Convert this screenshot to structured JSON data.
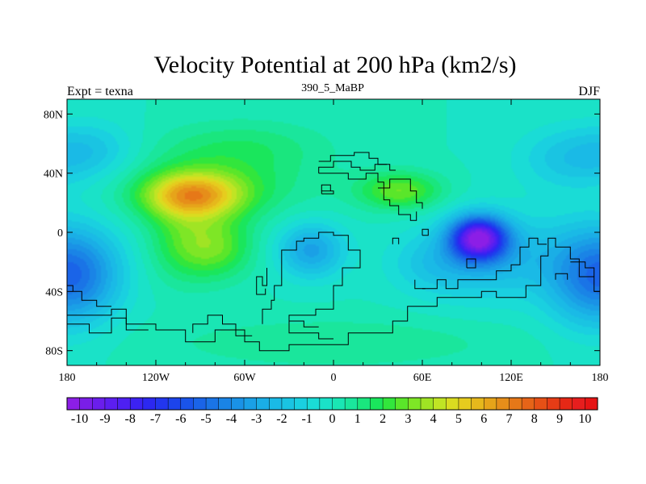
{
  "chart_data": {
    "type": "heatmap",
    "title": "Velocity Potential at 200 hPa (km2/s)",
    "subtitle": "390_5_MaBP",
    "left_label": "Expt = texna",
    "right_label": "DJF",
    "x_range": [
      -180,
      180
    ],
    "y_range": [
      -90,
      90
    ],
    "x_ticks": [
      {
        "value": -180,
        "label": "180"
      },
      {
        "value": -120,
        "label": "120W"
      },
      {
        "value": -60,
        "label": "60W"
      },
      {
        "value": 0,
        "label": "0"
      },
      {
        "value": 60,
        "label": "60E"
      },
      {
        "value": 120,
        "label": "120E"
      },
      {
        "value": 180,
        "label": "180"
      }
    ],
    "y_ticks": [
      {
        "value": 80,
        "label": "80N"
      },
      {
        "value": 40,
        "label": "40N"
      },
      {
        "value": 0,
        "label": "0"
      },
      {
        "value": -40,
        "label": "40S"
      },
      {
        "value": -80,
        "label": "80S"
      }
    ],
    "colorbar": {
      "min": -10.5,
      "max": 10.5,
      "step": 0.5,
      "labels": [
        "-10",
        "-9",
        "-8",
        "-7",
        "-6",
        "-5",
        "-4",
        "-3",
        "-2",
        "-1",
        "0",
        "1",
        "2",
        "3",
        "4",
        "5",
        "6",
        "7",
        "8",
        "9",
        "10"
      ],
      "colors": [
        "#8c1ee6",
        "#7a1ee8",
        "#6a1eec",
        "#5c1ef0",
        "#4e20f2",
        "#3c22f2",
        "#2c28f0",
        "#2236ee",
        "#1c44ec",
        "#1a54ea",
        "#1a64e8",
        "#1a74e6",
        "#1a84e6",
        "#1a92e6",
        "#1aa0e6",
        "#1aaee6",
        "#1abae6",
        "#1ac4e2",
        "#1ad0e0",
        "#1adcd6",
        "#1ae2c8",
        "#1ae6b4",
        "#1ae69c",
        "#1ae67e",
        "#1ae65c",
        "#32e63c",
        "#5ae62a",
        "#7ee626",
        "#a0e424",
        "#c0e424",
        "#dadc20",
        "#e6cc1e",
        "#e6b81c",
        "#e6a41a",
        "#e68e1a",
        "#e67818",
        "#e66418",
        "#e65016",
        "#e63c16",
        "#e62816",
        "#e61e1e",
        "#e61414"
      ]
    },
    "field_centers": [
      {
        "lon": -95,
        "lat": 25,
        "value": 5.4,
        "sigma_lon": 24,
        "sigma_lat": 11
      },
      {
        "lon": -75,
        "lat": 35,
        "value": 1.6,
        "sigma_lon": 45,
        "sigma_lat": 18
      },
      {
        "lon": -60,
        "lat": 60,
        "value": 1.0,
        "sigma_lon": 40,
        "sigma_lat": 12
      },
      {
        "lon": -80,
        "lat": -10,
        "value": 2.8,
        "sigma_lon": 18,
        "sigma_lat": 15
      },
      {
        "lon": -105,
        "lat": -5,
        "value": 1.6,
        "sigma_lon": 16,
        "sigma_lat": 20
      },
      {
        "lon": 45,
        "lat": 28,
        "value": 3.0,
        "sigma_lon": 20,
        "sigma_lat": 9
      },
      {
        "lon": 98,
        "lat": -4,
        "value": -9.0,
        "sigma_lon": 13,
        "sigma_lat": 10
      },
      {
        "lon": 108,
        "lat": -16,
        "value": -2.5,
        "sigma_lon": 32,
        "sigma_lat": 20
      },
      {
        "lon": 65,
        "lat": -22,
        "value": -1.2,
        "sigma_lon": 20,
        "sigma_lat": 14
      },
      {
        "lon": -15,
        "lat": -12,
        "value": -3.2,
        "sigma_lon": 16,
        "sigma_lat": 13
      },
      {
        "lon": -168,
        "lat": -28,
        "value": -3.4,
        "sigma_lon": 20,
        "sigma_lat": 22
      },
      {
        "lon": 168,
        "lat": -30,
        "value": -2.8,
        "sigma_lon": 20,
        "sigma_lat": 24
      },
      {
        "lon": 160,
        "lat": 50,
        "value": -1.8,
        "sigma_lon": 25,
        "sigma_lat": 15
      },
      {
        "lon": -162,
        "lat": 55,
        "value": -1.6,
        "sigma_lon": 22,
        "sigma_lat": 14
      },
      {
        "lon": 0,
        "lat": -75,
        "value": 1.0,
        "sigma_lon": 80,
        "sigma_lat": 12
      }
    ],
    "coastlines": [
      [
        [
          -180,
          -56
        ],
        [
          -150,
          -56
        ],
        [
          -150,
          -52
        ],
        [
          -140,
          -52
        ],
        [
          -140,
          -62
        ],
        [
          -120,
          -62
        ],
        [
          -120,
          -66
        ],
        [
          -100,
          -66
        ],
        [
          -100,
          -74
        ],
        [
          -80,
          -74
        ],
        [
          -80,
          -66
        ],
        [
          -60,
          -66
        ],
        [
          -60,
          -74
        ],
        [
          -50,
          -74
        ],
        [
          -50,
          -80
        ],
        [
          -30,
          -80
        ],
        [
          -30,
          -76
        ],
        [
          10,
          -76
        ],
        [
          10,
          -68
        ],
        [
          40,
          -68
        ],
        [
          40,
          -60
        ],
        [
          50,
          -60
        ],
        [
          50,
          -50
        ],
        [
          70,
          -50
        ],
        [
          70,
          -44
        ],
        [
          100,
          -44
        ],
        [
          100,
          -40
        ],
        [
          110,
          -40
        ],
        [
          110,
          -44
        ],
        [
          130,
          -44
        ],
        [
          130,
          -36
        ],
        [
          140,
          -36
        ],
        [
          140,
          -16
        ],
        [
          145,
          -16
        ],
        [
          145,
          -4
        ],
        [
          150,
          -4
        ],
        [
          150,
          -10
        ],
        [
          160,
          -10
        ],
        [
          160,
          -18
        ],
        [
          166,
          -18
        ],
        [
          166,
          -30
        ],
        [
          176,
          -30
        ],
        [
          176,
          -40
        ],
        [
          180,
          -40
        ],
        [
          180,
          -52
        ]
      ],
      [
        [
          -180,
          -62
        ],
        [
          -165,
          -62
        ],
        [
          -165,
          -68
        ],
        [
          -150,
          -68
        ],
        [
          -150,
          -58
        ],
        [
          -140,
          -58
        ],
        [
          -140,
          -66
        ],
        [
          -125,
          -66
        ]
      ],
      [
        [
          -95,
          -68
        ],
        [
          -95,
          -62
        ],
        [
          -85,
          -62
        ],
        [
          -85,
          -56
        ],
        [
          -75,
          -56
        ],
        [
          -75,
          -62
        ],
        [
          -66,
          -62
        ],
        [
          -66,
          -70
        ],
        [
          -55,
          -70
        ]
      ],
      [
        [
          -48,
          -62
        ],
        [
          -48,
          -52
        ],
        [
          -42,
          -52
        ],
        [
          -42,
          -46
        ],
        [
          -40,
          -46
        ],
        [
          -40,
          -36
        ],
        [
          -35,
          -36
        ],
        [
          -35,
          -12
        ],
        [
          -25,
          -12
        ],
        [
          -25,
          -6
        ],
        [
          -20,
          -6
        ],
        [
          -20,
          -4
        ],
        [
          -10,
          -4
        ],
        [
          -10,
          0
        ],
        [
          0,
          0
        ],
        [
          0,
          -2
        ],
        [
          10,
          -2
        ],
        [
          10,
          -12
        ],
        [
          18,
          -12
        ],
        [
          18,
          -24
        ],
        [
          6,
          -24
        ],
        [
          6,
          -36
        ],
        [
          0,
          -36
        ],
        [
          0,
          -52
        ],
        [
          -12,
          -52
        ],
        [
          -12,
          -56
        ],
        [
          -30,
          -56
        ],
        [
          -30,
          -68
        ],
        [
          -10,
          -68
        ],
        [
          -10,
          -72
        ],
        [
          0,
          -72
        ]
      ],
      [
        [
          -45,
          -24
        ],
        [
          -45,
          -36
        ],
        [
          -48,
          -36
        ],
        [
          -48,
          -30
        ],
        [
          -52,
          -30
        ],
        [
          -52,
          -42
        ],
        [
          -46,
          -42
        ],
        [
          -46,
          -38
        ]
      ],
      [
        [
          -10,
          40
        ],
        [
          10,
          40
        ],
        [
          10,
          36
        ],
        [
          22,
          36
        ],
        [
          22,
          40
        ],
        [
          30,
          40
        ],
        [
          30,
          34
        ],
        [
          34,
          34
        ],
        [
          34,
          30
        ],
        [
          38,
          30
        ],
        [
          38,
          36
        ],
        [
          52,
          36
        ],
        [
          52,
          28
        ],
        [
          56,
          28
        ],
        [
          56,
          20
        ],
        [
          60,
          20
        ],
        [
          60,
          16
        ]
      ],
      [
        [
          -10,
          40
        ],
        [
          -10,
          44
        ],
        [
          0,
          44
        ],
        [
          0,
          48
        ],
        [
          12,
          48
        ],
        [
          12,
          44
        ],
        [
          18,
          44
        ],
        [
          18,
          42
        ],
        [
          28,
          42
        ],
        [
          28,
          46
        ],
        [
          38,
          46
        ],
        [
          38,
          42
        ],
        [
          42,
          42
        ]
      ],
      [
        [
          -10,
          48
        ],
        [
          -2,
          48
        ],
        [
          -2,
          52
        ],
        [
          14,
          52
        ],
        [
          14,
          54
        ],
        [
          24,
          54
        ],
        [
          24,
          50
        ],
        [
          30,
          50
        ],
        [
          30,
          46
        ],
        [
          36,
          46
        ]
      ],
      [
        [
          -8,
          26
        ],
        [
          -8,
          28
        ],
        [
          0,
          28
        ],
        [
          0,
          26
        ],
        [
          -8,
          26
        ]
      ],
      [
        [
          -8,
          28
        ],
        [
          -8,
          32
        ],
        [
          -2,
          32
        ],
        [
          -2,
          28
        ]
      ],
      [
        [
          30,
          30
        ],
        [
          34,
          30
        ],
        [
          34,
          22
        ],
        [
          38,
          22
        ],
        [
          38,
          18
        ],
        [
          44,
          18
        ],
        [
          44,
          12
        ],
        [
          52,
          12
        ]
      ],
      [
        [
          60,
          -38
        ],
        [
          70,
          -38
        ],
        [
          70,
          -32
        ],
        [
          76,
          -32
        ],
        [
          76,
          -38
        ],
        [
          84,
          -38
        ],
        [
          84,
          -32
        ],
        [
          90,
          -32
        ]
      ],
      [
        [
          55,
          -32
        ],
        [
          55,
          -38
        ],
        [
          62,
          -38
        ]
      ],
      [
        [
          90,
          -32
        ],
        [
          110,
          -32
        ],
        [
          110,
          -26
        ],
        [
          120,
          -26
        ],
        [
          120,
          -22
        ],
        [
          126,
          -22
        ],
        [
          126,
          -10
        ],
        [
          132,
          -10
        ],
        [
          132,
          -4
        ],
        [
          138,
          -4
        ],
        [
          138,
          -8
        ],
        [
          144,
          -8
        ]
      ],
      [
        [
          160,
          -20
        ],
        [
          170,
          -20
        ],
        [
          170,
          -24
        ],
        [
          176,
          -24
        ],
        [
          176,
          -30
        ]
      ],
      [
        [
          -30,
          -60
        ],
        [
          -20,
          -60
        ],
        [
          -20,
          -64
        ],
        [
          -10,
          -64
        ]
      ],
      [
        [
          45,
          12
        ],
        [
          52,
          12
        ],
        [
          52,
          8
        ],
        [
          56,
          8
        ],
        [
          56,
          14
        ]
      ],
      [
        [
          40,
          -8
        ],
        [
          40,
          -4
        ],
        [
          44,
          -4
        ],
        [
          44,
          -8
        ]
      ],
      [
        [
          60,
          -2
        ],
        [
          60,
          2
        ],
        [
          64,
          2
        ],
        [
          64,
          -2
        ],
        [
          60,
          -2
        ]
      ],
      [
        [
          90,
          -24
        ],
        [
          90,
          -18
        ],
        [
          96,
          -18
        ],
        [
          96,
          -24
        ],
        [
          90,
          -24
        ]
      ],
      [
        [
          150,
          -32
        ],
        [
          150,
          -28
        ],
        [
          158,
          -28
        ],
        [
          158,
          -32
        ]
      ],
      [
        [
          -180,
          -36
        ],
        [
          -176,
          -36
        ],
        [
          -176,
          -40
        ],
        [
          -170,
          -40
        ],
        [
          -170,
          -46
        ],
        [
          -160,
          -46
        ],
        [
          -160,
          -50
        ],
        [
          -150,
          -50
        ]
      ]
    ]
  }
}
